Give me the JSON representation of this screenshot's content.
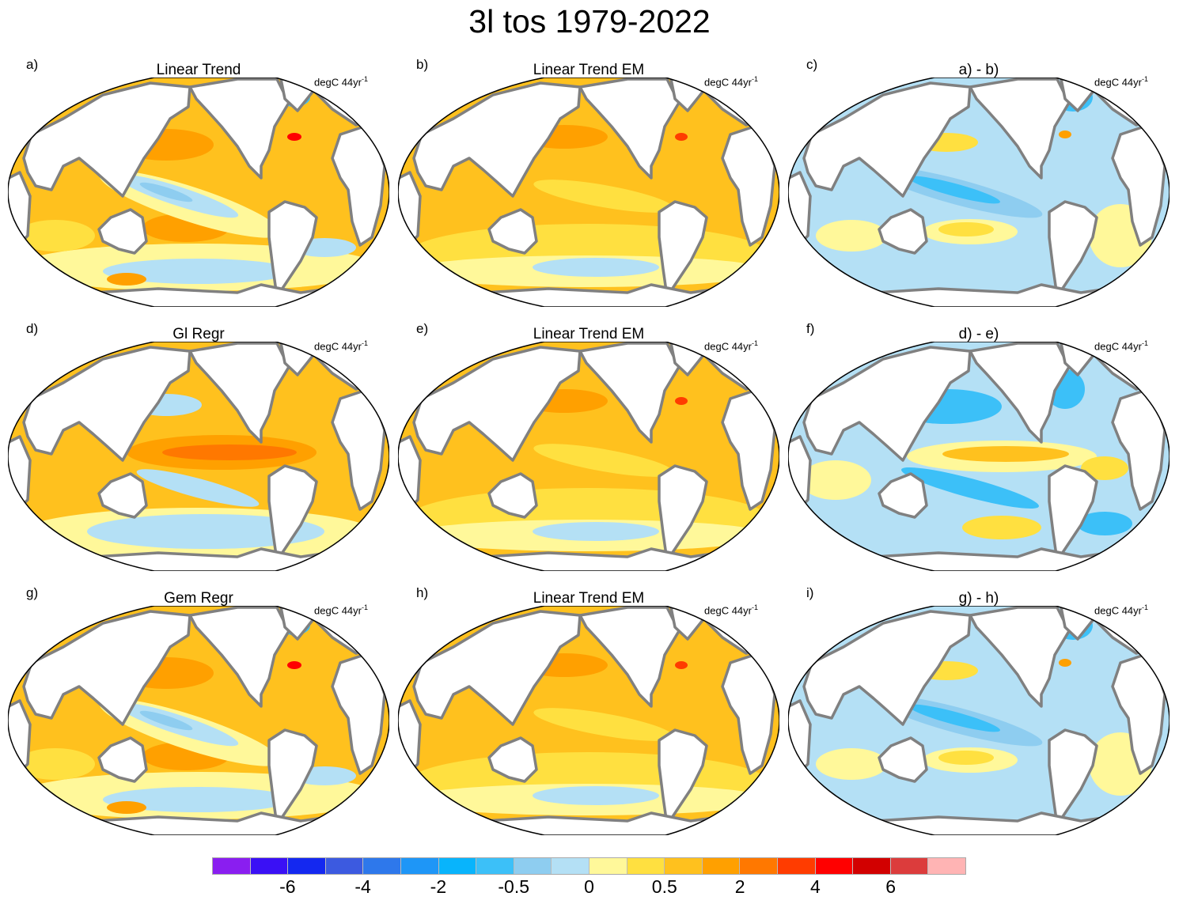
{
  "title": "3l tos 1979-2022",
  "panels": [
    {
      "letter": "a)",
      "title": "Linear Trend",
      "units": "degC 44yr",
      "units_sup": "-1",
      "field": "trend"
    },
    {
      "letter": "b)",
      "title": "Linear Trend EM",
      "units": "degC 44yr",
      "units_sup": "-1",
      "field": "em"
    },
    {
      "letter": "c)",
      "title": "a) - b)",
      "units": "degC 44yr",
      "units_sup": "-1",
      "field": "diff"
    },
    {
      "letter": "d)",
      "title": "Gl Regr",
      "units": "degC 44yr",
      "units_sup": "-1",
      "field": "regr"
    },
    {
      "letter": "e)",
      "title": "Linear Trend EM",
      "units": "degC 44yr",
      "units_sup": "-1",
      "field": "em"
    },
    {
      "letter": "f)",
      "title": "d) - e)",
      "units": "degC 44yr",
      "units_sup": "-1",
      "field": "diff2"
    },
    {
      "letter": "g)",
      "title": "Gem Regr",
      "units": "degC 44yr",
      "units_sup": "-1",
      "field": "trend"
    },
    {
      "letter": "h)",
      "title": "Linear Trend EM",
      "units": "degC 44yr",
      "units_sup": "-1",
      "field": "em"
    },
    {
      "letter": "i)",
      "title": "g) - h)",
      "units": "degC 44yr",
      "units_sup": "-1",
      "field": "diff"
    }
  ],
  "colorbar": {
    "colors": [
      "#8a1ef0",
      "#3a10f5",
      "#1428f0",
      "#3c5ae0",
      "#2e78eb",
      "#1e96f7",
      "#08b4fc",
      "#3cc0f8",
      "#8ecdf0",
      "#b4e0f5",
      "#fff89a",
      "#ffe040",
      "#ffc11e",
      "#ffa000",
      "#ff7800",
      "#ff3c00",
      "#ff0000",
      "#d20000",
      "#dc3c3c",
      "#ffb4b4"
    ],
    "labels": [
      {
        "text": "-6",
        "boundary": 2
      },
      {
        "text": "-4",
        "boundary": 4
      },
      {
        "text": "-2",
        "boundary": 6
      },
      {
        "text": "-0.5",
        "boundary": 8
      },
      {
        "text": "0",
        "boundary": 10
      },
      {
        "text": "0.5",
        "boundary": 12
      },
      {
        "text": "2",
        "boundary": 14
      },
      {
        "text": "4",
        "boundary": 16
      },
      {
        "text": "6",
        "boundary": 18
      }
    ]
  }
}
